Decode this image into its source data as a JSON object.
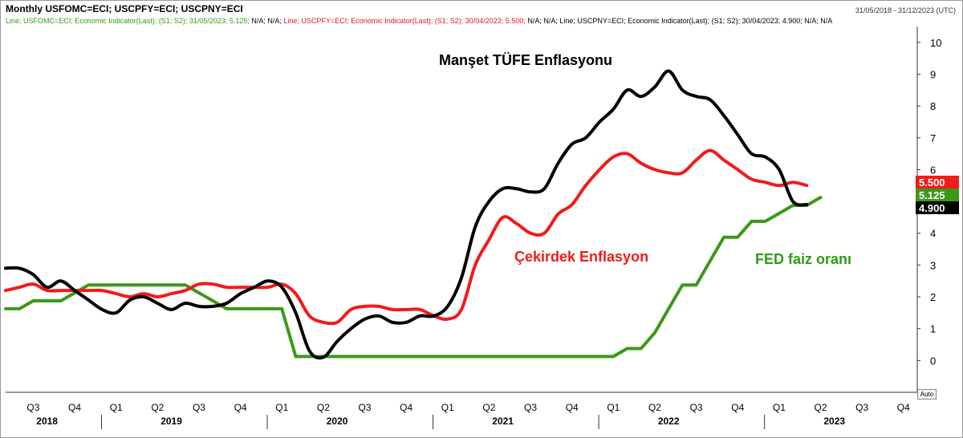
{
  "header": {
    "title": "Monthly USFOMC=ECI; USCPFY=ECI; USCPNY=ECI",
    "range": "31/05/2018 - 31/12/2023 (UTC)",
    "legend_prefix_green": "Line; USFOMC=ECI; Economic Indicator(Last); (S1; S2); 31/05/2023; 5.125; ",
    "legend_na_green": "N/A; N/A; ",
    "legend_prefix_red": "Line; USCPFY=ECI; Economic Indicator(Last); (S1; S2); 30/04/2023; 5.500; ",
    "legend_na_red": "N/A; N/A; ",
    "legend_prefix_black": "Line; USCPNY=ECI; Economic Indicator(Last); (S1; S2); 30/04/2023; 4.900; N/A; N/A"
  },
  "auto_label": "Auto",
  "colors": {
    "green": "#3a9a17",
    "red": "#f21a1a",
    "black": "#000000"
  },
  "chart_data": {
    "type": "line",
    "ylim": [
      -1,
      10.5
    ],
    "yticks": [
      0,
      1,
      2,
      3,
      4,
      5,
      6,
      7,
      8,
      9,
      10
    ],
    "x_start": "2018-06",
    "x_end": "2023-12",
    "quarter_ticks": [
      {
        "label": "Q3",
        "date": "2018-08"
      },
      {
        "label": "Q4",
        "date": "2018-11"
      },
      {
        "label": "Q1",
        "date": "2019-02"
      },
      {
        "label": "Q2",
        "date": "2019-05"
      },
      {
        "label": "Q3",
        "date": "2019-08"
      },
      {
        "label": "Q4",
        "date": "2019-11"
      },
      {
        "label": "Q1",
        "date": "2020-02"
      },
      {
        "label": "Q2",
        "date": "2020-05"
      },
      {
        "label": "Q3",
        "date": "2020-08"
      },
      {
        "label": "Q4",
        "date": "2020-11"
      },
      {
        "label": "Q1",
        "date": "2021-02"
      },
      {
        "label": "Q2",
        "date": "2021-05"
      },
      {
        "label": "Q3",
        "date": "2021-08"
      },
      {
        "label": "Q4",
        "date": "2021-11"
      },
      {
        "label": "Q1",
        "date": "2022-02"
      },
      {
        "label": "Q2",
        "date": "2022-05"
      },
      {
        "label": "Q3",
        "date": "2022-08"
      },
      {
        "label": "Q4",
        "date": "2022-11"
      },
      {
        "label": "Q1",
        "date": "2023-02"
      },
      {
        "label": "Q2",
        "date": "2023-05"
      },
      {
        "label": "Q3",
        "date": "2023-08"
      },
      {
        "label": "Q4",
        "date": "2023-11"
      }
    ],
    "years": [
      {
        "label": "2018",
        "date": "2018-09"
      },
      {
        "label": "2019",
        "date": "2019-06"
      },
      {
        "label": "2020",
        "date": "2020-06"
      },
      {
        "label": "2021",
        "date": "2021-06"
      },
      {
        "label": "2022",
        "date": "2022-06"
      },
      {
        "label": "2023",
        "date": "2023-06"
      }
    ],
    "year_separators": [
      "2019-01",
      "2020-01",
      "2021-01",
      "2022-01",
      "2023-01"
    ],
    "series": [
      {
        "key": "fed",
        "color": "#3a9a17",
        "last_label": "5.125",
        "annotation": "FED faiz oranı",
        "x": [
          "2018-06",
          "2018-07",
          "2018-08",
          "2018-09",
          "2018-10",
          "2018-11",
          "2018-12",
          "2019-01",
          "2019-02",
          "2019-03",
          "2019-04",
          "2019-05",
          "2019-06",
          "2019-07",
          "2019-08",
          "2019-09",
          "2019-10",
          "2019-11",
          "2019-12",
          "2020-01",
          "2020-02",
          "2020-03",
          "2020-04",
          "2020-05",
          "2020-06",
          "2020-07",
          "2020-08",
          "2020-09",
          "2020-10",
          "2020-11",
          "2020-12",
          "2021-01",
          "2021-02",
          "2021-03",
          "2021-04",
          "2021-05",
          "2021-06",
          "2021-07",
          "2021-08",
          "2021-09",
          "2021-10",
          "2021-11",
          "2021-12",
          "2022-01",
          "2022-02",
          "2022-03",
          "2022-04",
          "2022-05",
          "2022-06",
          "2022-07",
          "2022-08",
          "2022-09",
          "2022-10",
          "2022-11",
          "2022-12",
          "2023-01",
          "2023-02",
          "2023-03",
          "2023-04",
          "2023-05"
        ],
        "values": [
          1.625,
          1.625,
          1.875,
          1.875,
          1.875,
          2.125,
          2.375,
          2.375,
          2.375,
          2.375,
          2.375,
          2.375,
          2.375,
          2.375,
          2.125,
          1.875,
          1.625,
          1.625,
          1.625,
          1.625,
          1.625,
          0.125,
          0.125,
          0.125,
          0.125,
          0.125,
          0.125,
          0.125,
          0.125,
          0.125,
          0.125,
          0.125,
          0.125,
          0.125,
          0.125,
          0.125,
          0.125,
          0.125,
          0.125,
          0.125,
          0.125,
          0.125,
          0.125,
          0.125,
          0.125,
          0.375,
          0.375,
          0.875,
          1.625,
          2.375,
          2.375,
          3.125,
          3.875,
          3.875,
          4.375,
          4.375,
          4.625,
          4.875,
          4.875,
          5.125
        ]
      },
      {
        "key": "core",
        "color": "#f21a1a",
        "last_label": "5.500",
        "annotation": "Çekirdek Enflasyon",
        "x": [
          "2018-06",
          "2018-07",
          "2018-08",
          "2018-09",
          "2018-10",
          "2018-11",
          "2018-12",
          "2019-01",
          "2019-02",
          "2019-03",
          "2019-04",
          "2019-05",
          "2019-06",
          "2019-07",
          "2019-08",
          "2019-09",
          "2019-10",
          "2019-11",
          "2019-12",
          "2020-01",
          "2020-02",
          "2020-03",
          "2020-04",
          "2020-05",
          "2020-06",
          "2020-07",
          "2020-08",
          "2020-09",
          "2020-10",
          "2020-11",
          "2020-12",
          "2021-01",
          "2021-02",
          "2021-03",
          "2021-04",
          "2021-05",
          "2021-06",
          "2021-07",
          "2021-08",
          "2021-09",
          "2021-10",
          "2021-11",
          "2021-12",
          "2022-01",
          "2022-02",
          "2022-03",
          "2022-04",
          "2022-05",
          "2022-06",
          "2022-07",
          "2022-08",
          "2022-09",
          "2022-10",
          "2022-11",
          "2022-12",
          "2023-01",
          "2023-02",
          "2023-03",
          "2023-04"
        ],
        "values": [
          2.2,
          2.3,
          2.4,
          2.2,
          2.2,
          2.2,
          2.2,
          2.2,
          2.1,
          2.0,
          2.1,
          2.0,
          2.1,
          2.2,
          2.4,
          2.4,
          2.3,
          2.3,
          2.3,
          2.3,
          2.4,
          2.1,
          1.4,
          1.2,
          1.2,
          1.6,
          1.7,
          1.7,
          1.6,
          1.6,
          1.6,
          1.4,
          1.3,
          1.6,
          3.0,
          3.8,
          4.5,
          4.3,
          4.0,
          4.0,
          4.6,
          4.9,
          5.5,
          6.0,
          6.4,
          6.5,
          6.2,
          6.0,
          5.9,
          5.9,
          6.3,
          6.6,
          6.3,
          6.0,
          5.7,
          5.6,
          5.5,
          5.6,
          5.5
        ]
      },
      {
        "key": "headline",
        "color": "#000000",
        "last_label": "4.900",
        "annotation": "Manşet TÜFE Enflasyonu",
        "x": [
          "2018-06",
          "2018-07",
          "2018-08",
          "2018-09",
          "2018-10",
          "2018-11",
          "2018-12",
          "2019-01",
          "2019-02",
          "2019-03",
          "2019-04",
          "2019-05",
          "2019-06",
          "2019-07",
          "2019-08",
          "2019-09",
          "2019-10",
          "2019-11",
          "2019-12",
          "2020-01",
          "2020-02",
          "2020-03",
          "2020-04",
          "2020-05",
          "2020-06",
          "2020-07",
          "2020-08",
          "2020-09",
          "2020-10",
          "2020-11",
          "2020-12",
          "2021-01",
          "2021-02",
          "2021-03",
          "2021-04",
          "2021-05",
          "2021-06",
          "2021-07",
          "2021-08",
          "2021-09",
          "2021-10",
          "2021-11",
          "2021-12",
          "2022-01",
          "2022-02",
          "2022-03",
          "2022-04",
          "2022-05",
          "2022-06",
          "2022-07",
          "2022-08",
          "2022-09",
          "2022-10",
          "2022-11",
          "2022-12",
          "2023-01",
          "2023-02",
          "2023-03",
          "2023-04"
        ],
        "values": [
          2.9,
          2.9,
          2.7,
          2.3,
          2.5,
          2.2,
          1.9,
          1.6,
          1.5,
          1.9,
          2.0,
          1.8,
          1.6,
          1.8,
          1.7,
          1.7,
          1.8,
          2.1,
          2.3,
          2.5,
          2.3,
          1.5,
          0.3,
          0.1,
          0.6,
          1.0,
          1.3,
          1.4,
          1.2,
          1.2,
          1.4,
          1.4,
          1.7,
          2.6,
          4.2,
          5.0,
          5.4,
          5.4,
          5.3,
          5.4,
          6.2,
          6.8,
          7.0,
          7.5,
          7.9,
          8.5,
          8.3,
          8.6,
          9.1,
          8.5,
          8.3,
          8.2,
          7.7,
          7.1,
          6.5,
          6.4,
          6.0,
          5.0,
          4.9
        ]
      }
    ]
  }
}
